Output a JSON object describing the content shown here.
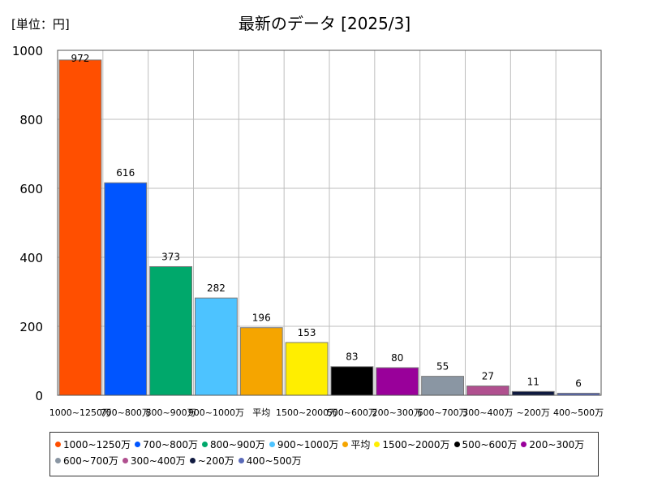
{
  "unit_label": "[単位：円]",
  "chart_data": {
    "type": "bar",
    "title": "最新のデータ [2025/3]",
    "categories": [
      "1000~1250万",
      "700~800万",
      "800~900万",
      "900~1000万",
      "平均",
      "1500~2000万",
      "500~600万",
      "200~300万",
      "600~700万",
      "300~400万",
      "~200万",
      "400~500万"
    ],
    "values": [
      972,
      616,
      373,
      282,
      196,
      153,
      83,
      80,
      55,
      27,
      11,
      6
    ],
    "colors": [
      "#ff4f00",
      "#0055ff",
      "#00a86b",
      "#4dc3ff",
      "#f5a500",
      "#ffee00",
      "#000000",
      "#99009a",
      "#8a96a3",
      "#b0508f",
      "#101a40",
      "#5a6ab8"
    ],
    "ylim": [
      0,
      1000
    ],
    "yticks": [
      0,
      200,
      400,
      600,
      800,
      1000
    ],
    "grid": true,
    "legend_position": "bottom"
  }
}
